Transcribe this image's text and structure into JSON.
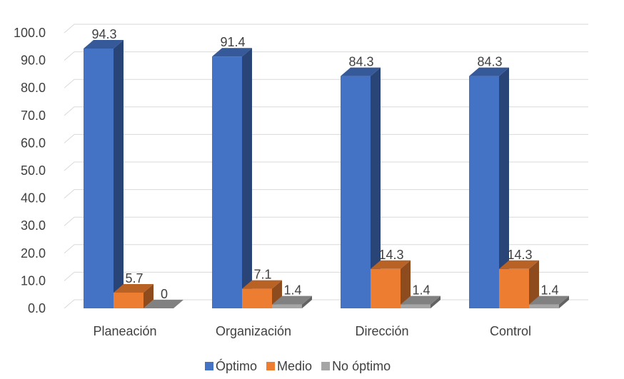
{
  "chart_data": {
    "type": "bar",
    "categories": [
      "Planeación",
      "Organización",
      "Dirección",
      "Control"
    ],
    "series": [
      {
        "name": "Óptimo",
        "values": [
          94.3,
          91.4,
          84.3,
          84.3
        ],
        "labels": [
          "94.3",
          "91.4",
          "84.3",
          "84.3"
        ],
        "color": "#4472C4"
      },
      {
        "name": "Medio",
        "values": [
          5.7,
          7.1,
          14.3,
          14.3
        ],
        "labels": [
          "5.7",
          "7.1",
          "14.3",
          "14.3"
        ],
        "color": "#ED7D31"
      },
      {
        "name": "No óptimo",
        "values": [
          0,
          1.4,
          1.4,
          1.4
        ],
        "labels": [
          "0",
          "1.4",
          "1.4",
          "1.4"
        ],
        "color": "#A5A5A5"
      }
    ],
    "ylim": [
      0,
      100
    ],
    "yticks": [
      "0.0",
      "10.0",
      "20.0",
      "30.0",
      "40.0",
      "50.0",
      "60.0",
      "70.0",
      "80.0",
      "90.0",
      "100.0"
    ],
    "grid": true,
    "legend_position": "bottom",
    "style": "3d-clustered-column"
  }
}
